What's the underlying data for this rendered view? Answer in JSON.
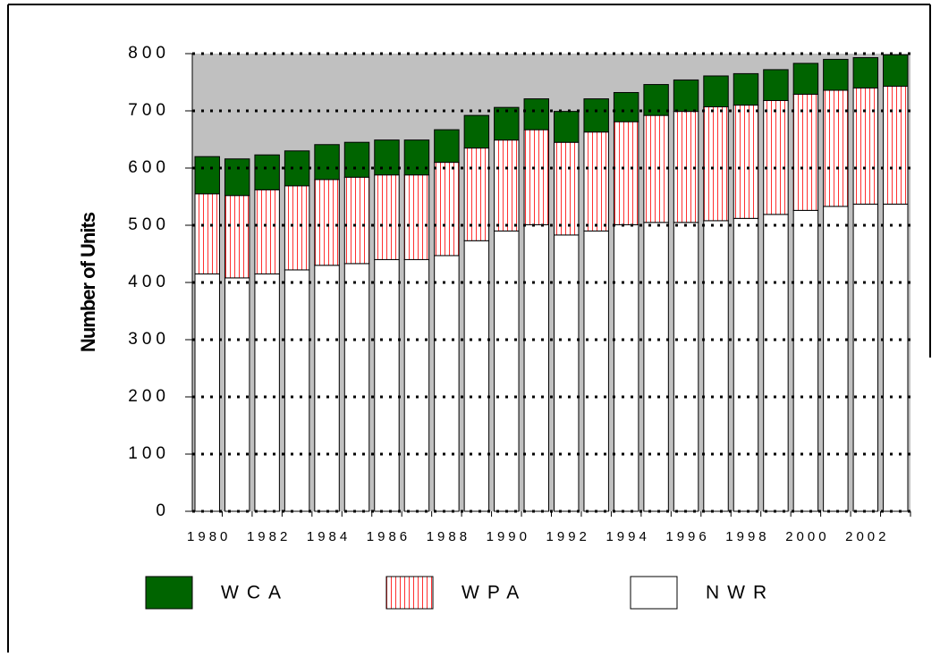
{
  "chart_data": {
    "type": "stacked_bar",
    "y_label": "Number of Units",
    "categories": [
      "1980",
      null,
      "1982",
      null,
      "1984",
      null,
      "1986",
      null,
      "1988",
      null,
      "1990",
      null,
      "1992",
      null,
      "1994",
      null,
      "1996",
      null,
      "1998",
      null,
      "2000",
      null,
      "2002",
      null
    ],
    "series": [
      {
        "name": "WCA",
        "color": "#006400",
        "values": [
          65,
          64,
          61,
          61,
          61,
          61,
          61,
          61,
          57,
          57,
          57,
          54,
          54,
          58,
          51,
          54,
          55,
          54,
          55,
          54,
          54,
          54,
          53,
          55
        ]
      },
      {
        "name": "WPA",
        "color": "#ff3030",
        "hatch": "vertical",
        "values": [
          140,
          144,
          147,
          147,
          150,
          151,
          148,
          148,
          163,
          162,
          159,
          166,
          162,
          173,
          180,
          187,
          194,
          199,
          198,
          199,
          203,
          203,
          203,
          206
        ]
      },
      {
        "name": "NWR",
        "color": "#ffffff",
        "values": [
          415,
          408,
          415,
          422,
          430,
          433,
          440,
          440,
          447,
          473,
          490,
          501,
          483,
          490,
          501,
          505,
          505,
          508,
          512,
          519,
          526,
          533,
          537,
          537
        ]
      }
    ],
    "ylim": [
      0,
      800
    ],
    "yticks": [
      0,
      100,
      200,
      300,
      400,
      500,
      600,
      700,
      800
    ],
    "grid": true,
    "plot_background": "#c0c0c0"
  }
}
